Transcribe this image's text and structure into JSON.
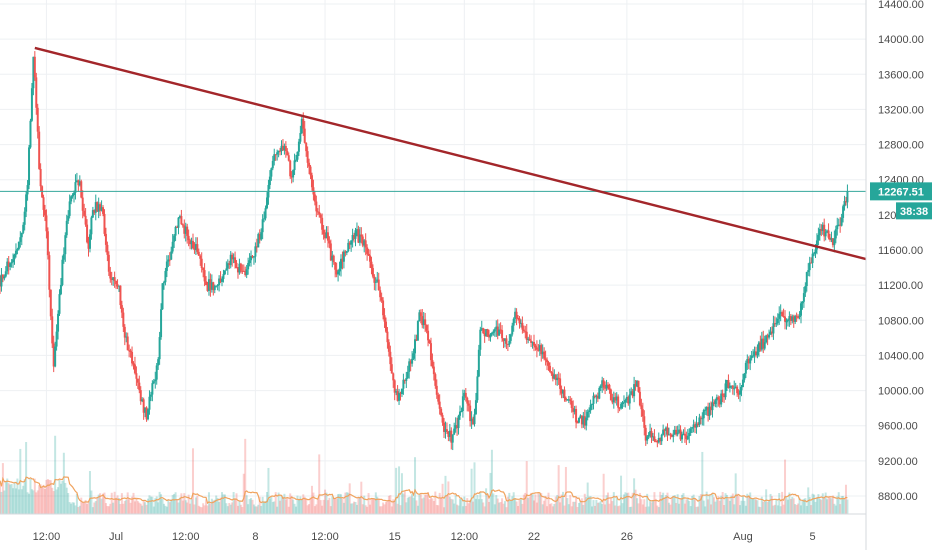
{
  "chart_data": {
    "type": "candlestick",
    "y_axis": {
      "ticks": [
        "14400.00",
        "14000.00",
        "13600.00",
        "13200.00",
        "12800.00",
        "12400.00",
        "12000.00",
        "11600.00",
        "11200.00",
        "10800.00",
        "10400.00",
        "10000.00",
        "9600.00",
        "9200.00",
        "8800.00"
      ],
      "ylim": [
        8600,
        14480
      ]
    },
    "x_axis": {
      "ticks": [
        {
          "label": "12:00",
          "day": 2.0
        },
        {
          "label": "Jul",
          "day": 5.0
        },
        {
          "label": "12:00",
          "day": 8.0
        },
        {
          "label": "8",
          "day": 11.0
        },
        {
          "label": "12:00",
          "day": 14.0
        },
        {
          "label": "15",
          "day": 17.0
        },
        {
          "label": "12:00",
          "day": 20.0
        },
        {
          "label": "22",
          "day": 23.0
        },
        {
          "label": "26",
          "day": 27.0
        },
        {
          "label": "Aug",
          "day": 32.0
        },
        {
          "label": "5",
          "day": 35.0
        }
      ],
      "range": [
        0.0,
        37.3
      ]
    },
    "last_price": "12267.51",
    "countdown": "38:38",
    "last_price_value": 12267.51,
    "trendline": {
      "from": {
        "day": 1.5,
        "price": 13900
      },
      "to": {
        "day": 38.0,
        "price": 11450
      }
    },
    "price_anchors": [
      [
        0.0,
        11250
      ],
      [
        0.5,
        11500
      ],
      [
        0.9,
        11700
      ],
      [
        1.2,
        12400
      ],
      [
        1.45,
        13900
      ],
      [
        1.7,
        12500
      ],
      [
        2.0,
        11800
      ],
      [
        2.3,
        10300
      ],
      [
        2.6,
        11200
      ],
      [
        2.9,
        12000
      ],
      [
        3.2,
        12300
      ],
      [
        3.4,
        12400
      ],
      [
        3.8,
        11600
      ],
      [
        4.0,
        12100
      ],
      [
        4.4,
        12050
      ],
      [
        4.7,
        11300
      ],
      [
        5.1,
        11200
      ],
      [
        5.4,
        10600
      ],
      [
        5.9,
        10100
      ],
      [
        6.3,
        9700
      ],
      [
        6.8,
        10300
      ],
      [
        7.0,
        11200
      ],
      [
        7.4,
        11650
      ],
      [
        7.7,
        12000
      ],
      [
        8.0,
        11800
      ],
      [
        8.5,
        11600
      ],
      [
        8.9,
        11200
      ],
      [
        9.3,
        11200
      ],
      [
        9.6,
        11350
      ],
      [
        10.0,
        11500
      ],
      [
        10.5,
        11300
      ],
      [
        11.0,
        11600
      ],
      [
        11.4,
        12000
      ],
      [
        11.8,
        12700
      ],
      [
        12.2,
        12800
      ],
      [
        12.6,
        12400
      ],
      [
        13.0,
        13100
      ],
      [
        13.3,
        12500
      ],
      [
        13.7,
        12000
      ],
      [
        14.0,
        11800
      ],
      [
        14.5,
        11300
      ],
      [
        15.0,
        11700
      ],
      [
        15.3,
        11800
      ],
      [
        15.8,
        11600
      ],
      [
        16.1,
        11300
      ],
      [
        16.4,
        11100
      ],
      [
        16.8,
        10300
      ],
      [
        17.1,
        9900
      ],
      [
        17.4,
        10100
      ],
      [
        17.8,
        10400
      ],
      [
        18.1,
        10900
      ],
      [
        18.5,
        10500
      ],
      [
        18.8,
        9900
      ],
      [
        19.1,
        9600
      ],
      [
        19.5,
        9450
      ],
      [
        19.8,
        9700
      ],
      [
        20.0,
        10000
      ],
      [
        20.4,
        9550
      ],
      [
        20.7,
        10700
      ],
      [
        21.1,
        10600
      ],
      [
        21.5,
        10700
      ],
      [
        21.9,
        10500
      ],
      [
        22.2,
        10900
      ],
      [
        22.7,
        10600
      ],
      [
        23.2,
        10500
      ],
      [
        23.6,
        10300
      ],
      [
        24.0,
        10100
      ],
      [
        24.4,
        9900
      ],
      [
        24.8,
        9700
      ],
      [
        25.2,
        9650
      ],
      [
        25.6,
        9900
      ],
      [
        26.0,
        10100
      ],
      [
        26.4,
        9900
      ],
      [
        26.8,
        9850
      ],
      [
        27.1,
        9900
      ],
      [
        27.4,
        10100
      ],
      [
        27.8,
        9500
      ],
      [
        28.2,
        9450
      ],
      [
        28.6,
        9500
      ],
      [
        29.0,
        9550
      ],
      [
        29.4,
        9450
      ],
      [
        29.8,
        9550
      ],
      [
        30.2,
        9700
      ],
      [
        30.6,
        9800
      ],
      [
        31.0,
        9900
      ],
      [
        31.4,
        10100
      ],
      [
        31.8,
        10000
      ],
      [
        32.3,
        10400
      ],
      [
        32.7,
        10500
      ],
      [
        33.1,
        10600
      ],
      [
        33.6,
        10900
      ],
      [
        34.0,
        10800
      ],
      [
        34.3,
        10850
      ],
      [
        34.6,
        11000
      ],
      [
        34.8,
        11400
      ],
      [
        35.0,
        11500
      ],
      [
        35.3,
        11850
      ],
      [
        35.6,
        11800
      ],
      [
        35.9,
        11700
      ],
      [
        36.2,
        11950
      ],
      [
        36.5,
        12267.51
      ]
    ]
  }
}
